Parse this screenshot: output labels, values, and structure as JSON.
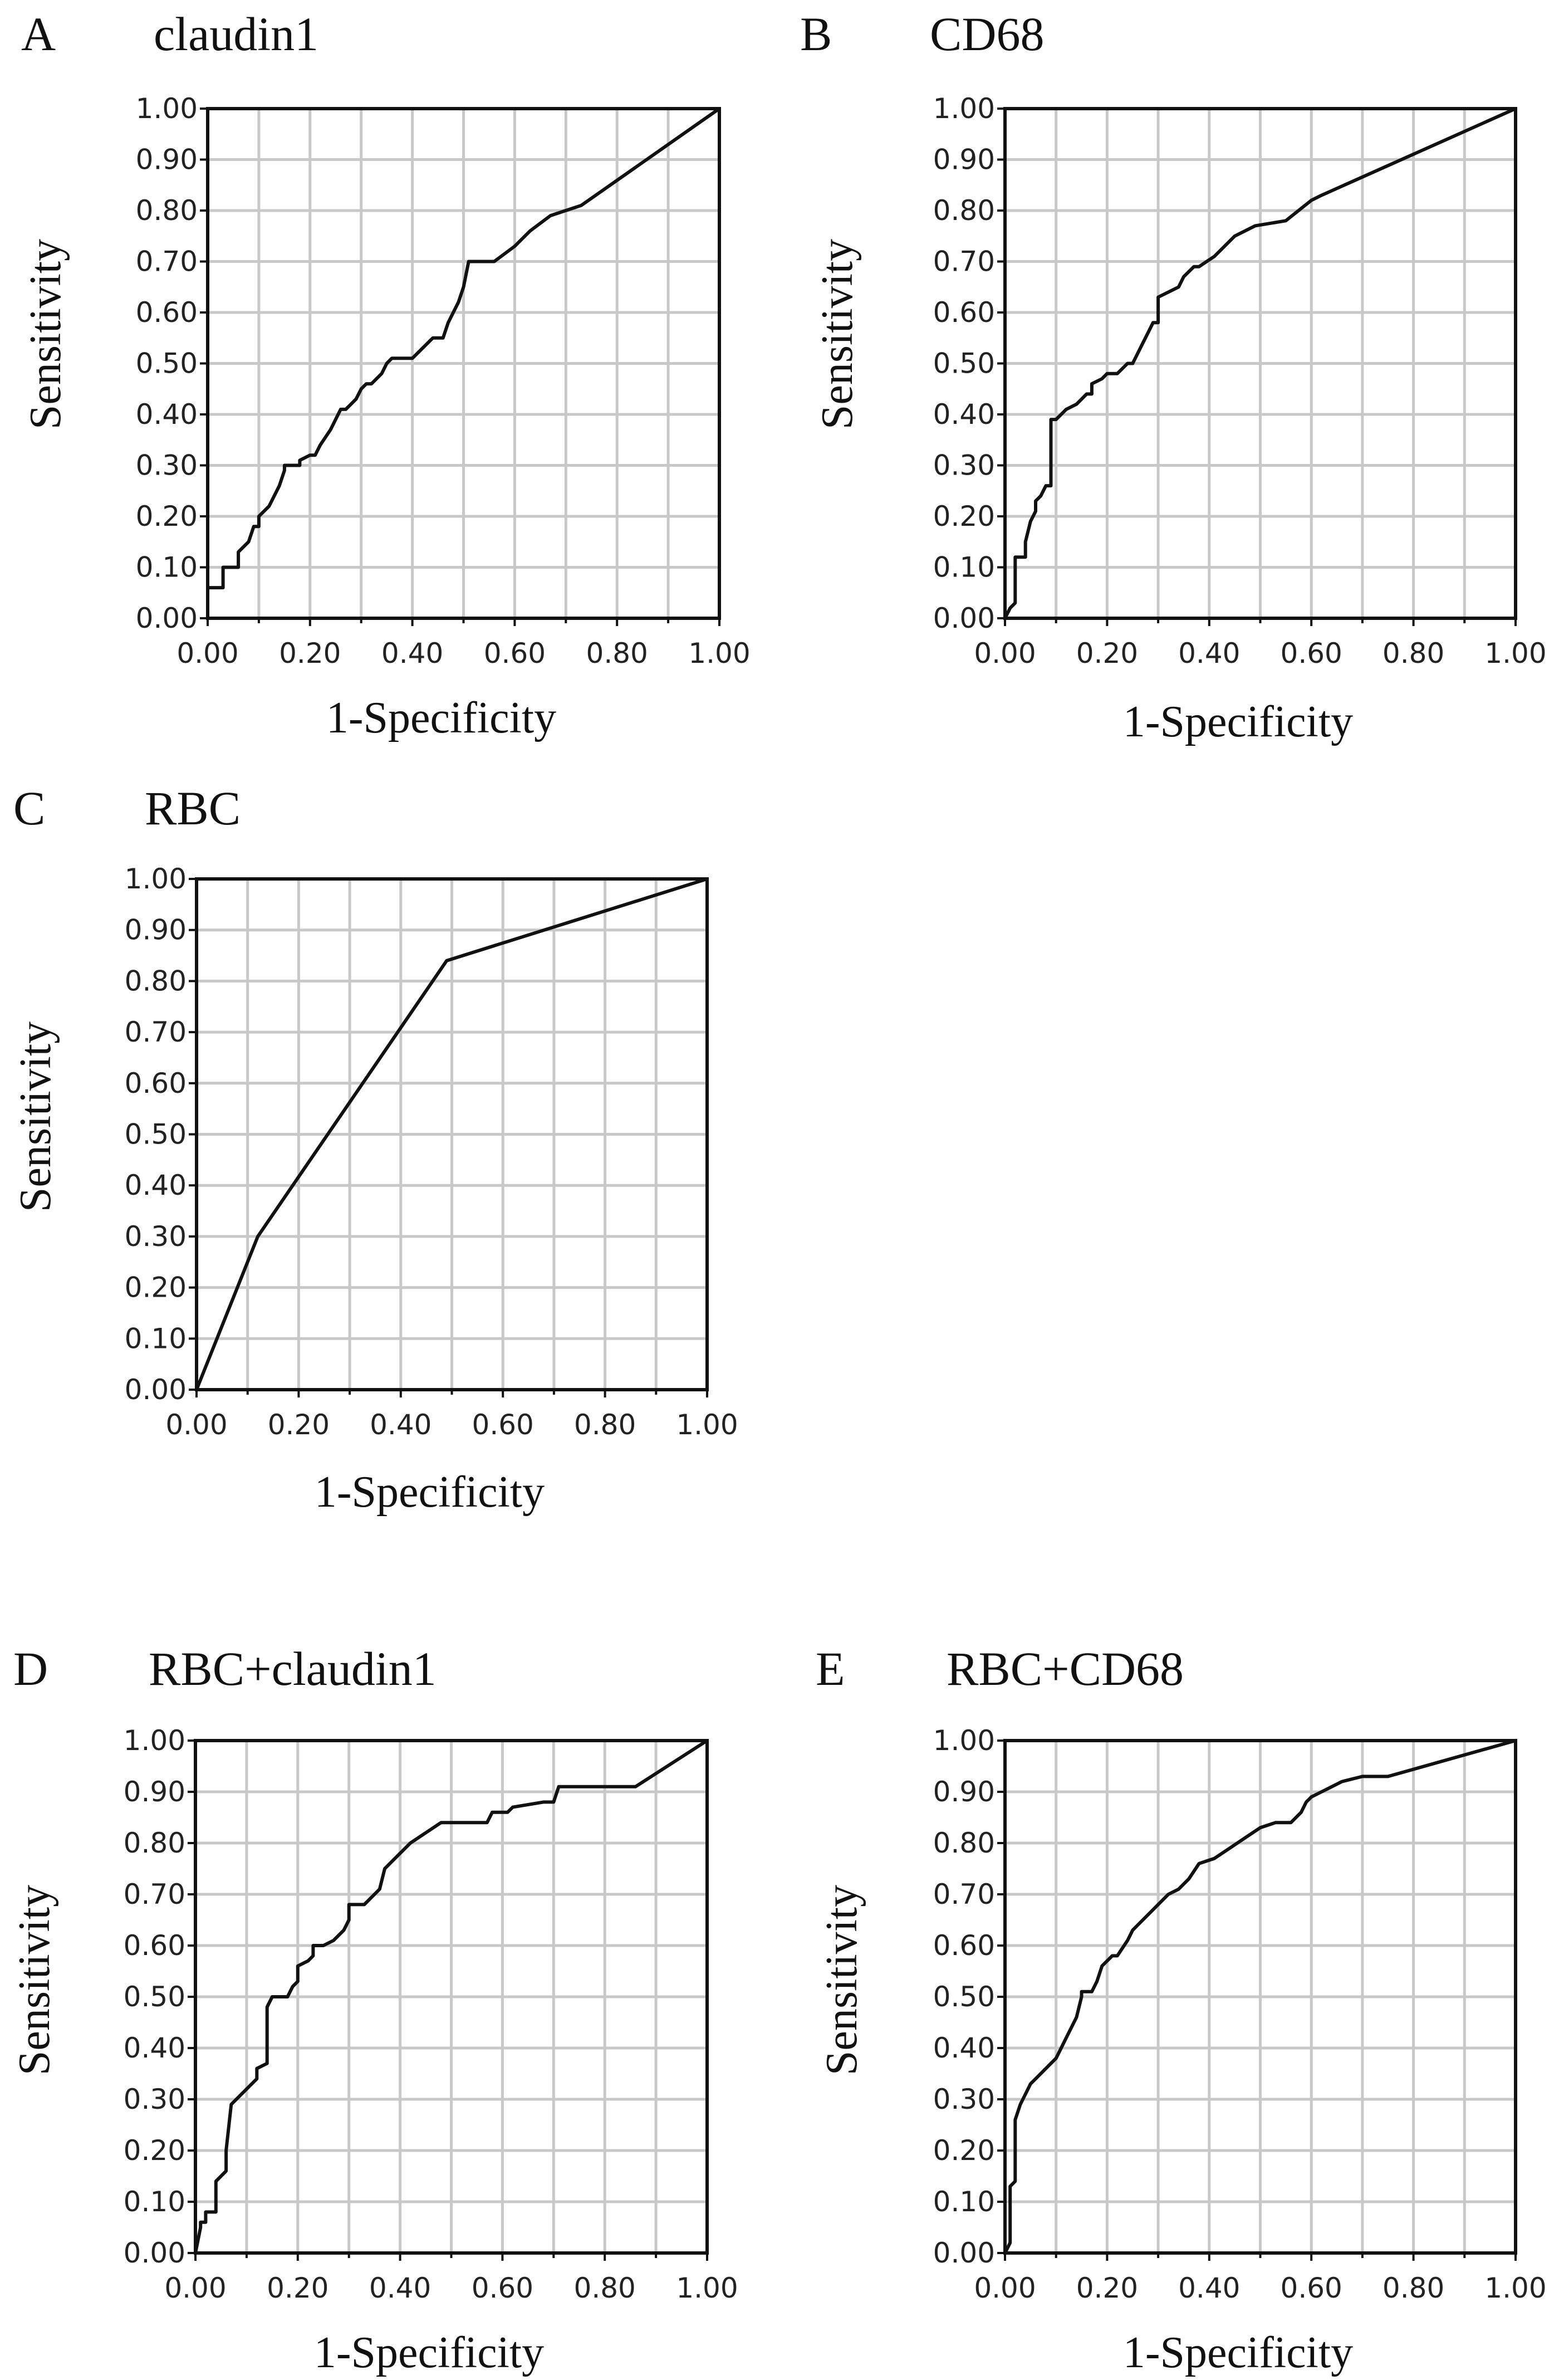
{
  "figure": {
    "panels": [
      {
        "letter": "A",
        "title": "claudin1"
      },
      {
        "letter": "B",
        "title": "CD68"
      },
      {
        "letter": "C",
        "title": "RBC"
      },
      {
        "letter": "D",
        "title": "RBC+claudin1"
      },
      {
        "letter": "E",
        "title": "RBC+CD68"
      }
    ]
  },
  "chart_data": [
    {
      "type": "line",
      "title": "claudin1",
      "xlabel": "1-Specificity",
      "ylabel": "Sensitivity",
      "xlim": [
        0,
        1
      ],
      "ylim": [
        0,
        1
      ],
      "xticks": [
        "0.00",
        "0.20",
        "0.40",
        "0.60",
        "0.80",
        "1.00"
      ],
      "yticks": [
        "0.00",
        "0.10",
        "0.20",
        "0.30",
        "0.40",
        "0.50",
        "0.60",
        "0.70",
        "0.80",
        "0.90",
        "1.00"
      ],
      "grid": true,
      "series": [
        {
          "name": "claudin1",
          "x": [
            0,
            0,
            0.03,
            0.03,
            0.06,
            0.06,
            0.08,
            0.09,
            0.1,
            0.1,
            0.12,
            0.13,
            0.14,
            0.15,
            0.15,
            0.18,
            0.18,
            0.2,
            0.21,
            0.22,
            0.24,
            0.26,
            0.27,
            0.29,
            0.3,
            0.31,
            0.32,
            0.34,
            0.35,
            0.36,
            0.38,
            0.4,
            0.42,
            0.44,
            0.46,
            0.47,
            0.48,
            0.49,
            0.5,
            0.51,
            0.52,
            0.54,
            0.56,
            0.6,
            0.63,
            0.67,
            0.73,
            1.0
          ],
          "y": [
            0,
            0.06,
            0.06,
            0.1,
            0.1,
            0.13,
            0.15,
            0.18,
            0.18,
            0.2,
            0.22,
            0.24,
            0.26,
            0.29,
            0.3,
            0.3,
            0.31,
            0.32,
            0.32,
            0.34,
            0.37,
            0.41,
            0.41,
            0.43,
            0.45,
            0.46,
            0.46,
            0.48,
            0.5,
            0.51,
            0.51,
            0.51,
            0.53,
            0.55,
            0.55,
            0.58,
            0.6,
            0.62,
            0.65,
            0.7,
            0.7,
            0.7,
            0.7,
            0.73,
            0.76,
            0.79,
            0.81,
            1.0
          ]
        }
      ]
    },
    {
      "type": "line",
      "title": "CD68",
      "xlabel": "1-Specificity",
      "ylabel": "Sensitivity",
      "xlim": [
        0,
        1
      ],
      "ylim": [
        0,
        1
      ],
      "xticks": [
        "0.00",
        "0.20",
        "0.40",
        "0.60",
        "0.80",
        "1.00"
      ],
      "yticks": [
        "0.00",
        "0.10",
        "0.20",
        "0.30",
        "0.40",
        "0.50",
        "0.60",
        "0.70",
        "0.80",
        "0.90",
        "1.00"
      ],
      "grid": true,
      "series": [
        {
          "name": "CD68",
          "x": [
            0,
            0.01,
            0.02,
            0.02,
            0.04,
            0.04,
            0.05,
            0.06,
            0.06,
            0.07,
            0.08,
            0.09,
            0.09,
            0.1,
            0.12,
            0.12,
            0.14,
            0.16,
            0.17,
            0.17,
            0.19,
            0.2,
            0.22,
            0.24,
            0.25,
            0.27,
            0.28,
            0.29,
            0.3,
            0.3,
            0.32,
            0.34,
            0.35,
            0.37,
            0.38,
            0.41,
            0.45,
            0.49,
            0.55,
            0.6,
            0.62,
            1.0
          ],
          "y": [
            0,
            0.02,
            0.03,
            0.12,
            0.12,
            0.15,
            0.19,
            0.21,
            0.23,
            0.24,
            0.26,
            0.26,
            0.39,
            0.39,
            0.41,
            0.41,
            0.42,
            0.44,
            0.44,
            0.46,
            0.47,
            0.48,
            0.48,
            0.5,
            0.5,
            0.54,
            0.56,
            0.58,
            0.58,
            0.63,
            0.64,
            0.65,
            0.67,
            0.69,
            0.69,
            0.71,
            0.75,
            0.77,
            0.78,
            0.82,
            0.83,
            1.0
          ]
        }
      ]
    },
    {
      "type": "line",
      "title": "RBC",
      "xlabel": "1-Specificity",
      "ylabel": "Sensitivity",
      "xlim": [
        0,
        1
      ],
      "ylim": [
        0,
        1
      ],
      "xticks": [
        "0.00",
        "0.20",
        "0.40",
        "0.60",
        "0.80",
        "1.00"
      ],
      "yticks": [
        "0.00",
        "0.10",
        "0.20",
        "0.30",
        "0.40",
        "0.50",
        "0.60",
        "0.70",
        "0.80",
        "0.90",
        "1.00"
      ],
      "grid": true,
      "series": [
        {
          "name": "RBC",
          "x": [
            0,
            0.12,
            0.49,
            1.0
          ],
          "y": [
            0,
            0.3,
            0.84,
            1.0
          ]
        }
      ]
    },
    {
      "type": "line",
      "title": "RBC+claudin1",
      "xlabel": "1-Specificity",
      "ylabel": "Sensitivity",
      "xlim": [
        0,
        1
      ],
      "ylim": [
        0,
        1
      ],
      "xticks": [
        "0.00",
        "0.20",
        "0.40",
        "0.60",
        "0.80",
        "1.00"
      ],
      "yticks": [
        "0.00",
        "0.10",
        "0.20",
        "0.30",
        "0.40",
        "0.50",
        "0.60",
        "0.70",
        "0.80",
        "0.90",
        "1.00"
      ],
      "grid": true,
      "series": [
        {
          "name": "RBC+claudin1",
          "x": [
            0,
            0.01,
            0.01,
            0.02,
            0.02,
            0.04,
            0.04,
            0.06,
            0.06,
            0.07,
            0.08,
            0.1,
            0.12,
            0.12,
            0.14,
            0.14,
            0.15,
            0.15,
            0.18,
            0.19,
            0.2,
            0.2,
            0.22,
            0.23,
            0.23,
            0.25,
            0.27,
            0.29,
            0.3,
            0.3,
            0.33,
            0.35,
            0.36,
            0.37,
            0.38,
            0.42,
            0.48,
            0.52,
            0.57,
            0.58,
            0.61,
            0.62,
            0.68,
            0.7,
            0.71,
            0.73,
            0.86,
            1.0
          ],
          "y": [
            0,
            0.05,
            0.06,
            0.06,
            0.08,
            0.08,
            0.14,
            0.16,
            0.2,
            0.29,
            0.3,
            0.32,
            0.34,
            0.36,
            0.37,
            0.48,
            0.5,
            0.5,
            0.5,
            0.52,
            0.53,
            0.56,
            0.57,
            0.58,
            0.6,
            0.6,
            0.61,
            0.63,
            0.65,
            0.68,
            0.68,
            0.7,
            0.71,
            0.75,
            0.76,
            0.8,
            0.84,
            0.84,
            0.84,
            0.86,
            0.86,
            0.87,
            0.88,
            0.88,
            0.91,
            0.91,
            0.91,
            1.0
          ]
        }
      ]
    },
    {
      "type": "line",
      "title": "RBC+CD68",
      "xlabel": "1-Specificity",
      "ylabel": "Sensitivity",
      "xlim": [
        0,
        1
      ],
      "ylim": [
        0,
        1
      ],
      "xticks": [
        "0.00",
        "0.20",
        "0.40",
        "0.60",
        "0.80",
        "1.00"
      ],
      "yticks": [
        "0.00",
        "0.10",
        "0.20",
        "0.30",
        "0.40",
        "0.50",
        "0.60",
        "0.70",
        "0.80",
        "0.90",
        "1.00"
      ],
      "grid": true,
      "series": [
        {
          "name": "RBC+CD68",
          "x": [
            0,
            0.01,
            0.01,
            0.02,
            0.02,
            0.03,
            0.04,
            0.05,
            0.06,
            0.08,
            0.1,
            0.11,
            0.12,
            0.13,
            0.14,
            0.15,
            0.15,
            0.17,
            0.18,
            0.19,
            0.21,
            0.22,
            0.24,
            0.25,
            0.26,
            0.28,
            0.3,
            0.32,
            0.34,
            0.36,
            0.38,
            0.41,
            0.44,
            0.47,
            0.5,
            0.53,
            0.56,
            0.58,
            0.59,
            0.6,
            0.62,
            0.64,
            0.66,
            0.7,
            0.75,
            1.0
          ],
          "y": [
            0,
            0.02,
            0.13,
            0.14,
            0.26,
            0.29,
            0.31,
            0.33,
            0.34,
            0.36,
            0.38,
            0.4,
            0.42,
            0.44,
            0.46,
            0.5,
            0.51,
            0.51,
            0.53,
            0.56,
            0.58,
            0.58,
            0.61,
            0.63,
            0.64,
            0.66,
            0.68,
            0.7,
            0.71,
            0.73,
            0.76,
            0.77,
            0.79,
            0.81,
            0.83,
            0.84,
            0.84,
            0.86,
            0.88,
            0.89,
            0.9,
            0.91,
            0.92,
            0.93,
            0.93,
            1.0
          ]
        }
      ]
    }
  ]
}
